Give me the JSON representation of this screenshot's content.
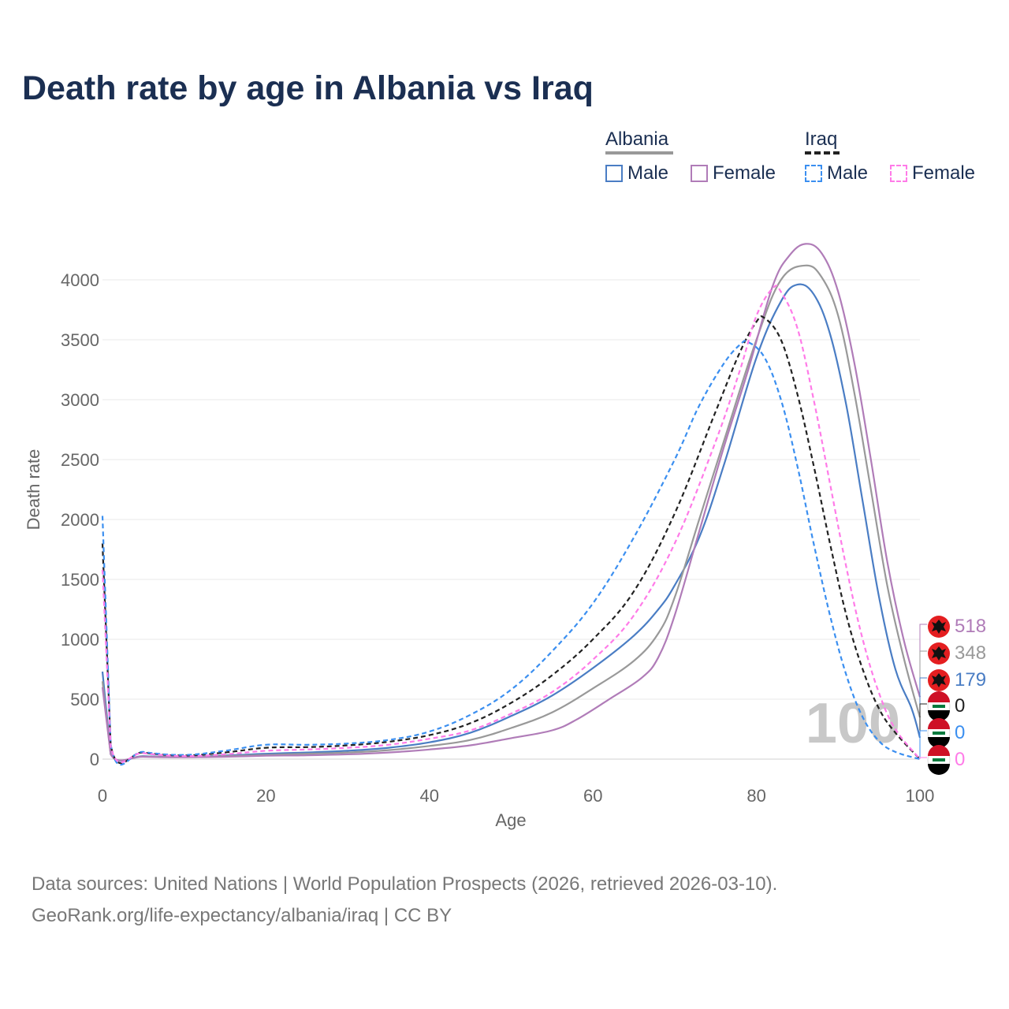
{
  "title": "Death rate by age in Albania vs Iraq",
  "legend": {
    "groups": [
      {
        "country": "Albania",
        "underline_color": "#999999",
        "underline_style": "solid",
        "items": [
          {
            "label": "Male",
            "color": "#4a7dc4",
            "style": "solid"
          },
          {
            "label": "Female",
            "color": "#b07cb8",
            "style": "solid"
          }
        ]
      },
      {
        "country": "Iraq",
        "underline_color": "#222222",
        "underline_style": "dashed",
        "items": [
          {
            "label": "Male",
            "color": "#3b8ff0",
            "style": "dashed"
          },
          {
            "label": "Female",
            "color": "#ff7be8",
            "style": "dashed"
          }
        ]
      }
    ]
  },
  "footer": {
    "line1": "Data sources: United Nations | World Population Prospects (2026, retrieved 2026-03-10).",
    "line2": "GeoRank.org/life-expectancy/albania/iraq | CC BY"
  },
  "chart_data": {
    "type": "line",
    "title": "Death rate by age in Albania vs Iraq",
    "xlabel": "Age",
    "ylabel": "Death rate",
    "xlim": [
      0,
      100
    ],
    "ylim": [
      0,
      4300
    ],
    "xticks": [
      0,
      20,
      40,
      60,
      80,
      100
    ],
    "yticks": [
      0,
      500,
      1000,
      1500,
      2000,
      2500,
      3000,
      3500,
      4000
    ],
    "current_age_label": "100",
    "series": [
      {
        "name": "Albania Male",
        "color": "#4a7dc4",
        "dash": false,
        "points": [
          [
            0,
            730
          ],
          [
            1,
            45
          ],
          [
            5,
            25
          ],
          [
            10,
            20
          ],
          [
            15,
            30
          ],
          [
            20,
            45
          ],
          [
            25,
            55
          ],
          [
            30,
            70
          ],
          [
            35,
            95
          ],
          [
            40,
            140
          ],
          [
            45,
            220
          ],
          [
            50,
            360
          ],
          [
            55,
            530
          ],
          [
            60,
            760
          ],
          [
            65,
            1030
          ],
          [
            68,
            1250
          ],
          [
            70,
            1450
          ],
          [
            73,
            1850
          ],
          [
            76,
            2450
          ],
          [
            80,
            3350
          ],
          [
            83,
            3820
          ],
          [
            85,
            3960
          ],
          [
            87,
            3880
          ],
          [
            89,
            3550
          ],
          [
            91,
            2950
          ],
          [
            93,
            2150
          ],
          [
            95,
            1350
          ],
          [
            97,
            750
          ],
          [
            99,
            420
          ],
          [
            100,
            179
          ]
        ]
      },
      {
        "name": "Albania (both sexes)",
        "color": "#999999",
        "dash": false,
        "points": [
          [
            0,
            650
          ],
          [
            1,
            42
          ],
          [
            5,
            22
          ],
          [
            10,
            18
          ],
          [
            15,
            25
          ],
          [
            20,
            35
          ],
          [
            25,
            45
          ],
          [
            30,
            55
          ],
          [
            35,
            75
          ],
          [
            40,
            110
          ],
          [
            45,
            160
          ],
          [
            50,
            260
          ],
          [
            55,
            390
          ],
          [
            60,
            590
          ],
          [
            65,
            820
          ],
          [
            68,
            1050
          ],
          [
            70,
            1350
          ],
          [
            73,
            2000
          ],
          [
            76,
            2650
          ],
          [
            80,
            3500
          ],
          [
            83,
            4000
          ],
          [
            86,
            4120
          ],
          [
            88,
            4020
          ],
          [
            90,
            3700
          ],
          [
            92,
            3050
          ],
          [
            94,
            2250
          ],
          [
            96,
            1450
          ],
          [
            98,
            850
          ],
          [
            100,
            348
          ]
        ]
      },
      {
        "name": "Albania Female",
        "color": "#b07cb8",
        "dash": false,
        "points": [
          [
            0,
            600
          ],
          [
            1,
            40
          ],
          [
            5,
            20
          ],
          [
            10,
            16
          ],
          [
            15,
            20
          ],
          [
            20,
            28
          ],
          [
            25,
            32
          ],
          [
            30,
            40
          ],
          [
            35,
            55
          ],
          [
            40,
            80
          ],
          [
            45,
            115
          ],
          [
            50,
            175
          ],
          [
            55,
            240
          ],
          [
            58,
            330
          ],
          [
            62,
            500
          ],
          [
            66,
            680
          ],
          [
            68,
            850
          ],
          [
            70,
            1200
          ],
          [
            73,
            1900
          ],
          [
            76,
            2600
          ],
          [
            79,
            3250
          ],
          [
            82,
            3950
          ],
          [
            84,
            4200
          ],
          [
            86,
            4300
          ],
          [
            88,
            4220
          ],
          [
            90,
            3900
          ],
          [
            92,
            3300
          ],
          [
            94,
            2500
          ],
          [
            96,
            1650
          ],
          [
            98,
            1000
          ],
          [
            100,
            518
          ]
        ]
      },
      {
        "name": "Iraq (both sexes)",
        "color": "#222222",
        "dash": true,
        "points": [
          [
            0,
            1800
          ],
          [
            1,
            120
          ],
          [
            5,
            55
          ],
          [
            10,
            30
          ],
          [
            15,
            55
          ],
          [
            20,
            95
          ],
          [
            25,
            100
          ],
          [
            30,
            115
          ],
          [
            35,
            145
          ],
          [
            40,
            200
          ],
          [
            45,
            300
          ],
          [
            50,
            470
          ],
          [
            55,
            700
          ],
          [
            60,
            1000
          ],
          [
            65,
            1400
          ],
          [
            70,
            2050
          ],
          [
            75,
            2900
          ],
          [
            78,
            3400
          ],
          [
            80,
            3650
          ],
          [
            81,
            3680
          ],
          [
            83,
            3500
          ],
          [
            85,
            3050
          ],
          [
            87,
            2450
          ],
          [
            89,
            1800
          ],
          [
            91,
            1200
          ],
          [
            93,
            750
          ],
          [
            95,
            420
          ],
          [
            97,
            220
          ],
          [
            100,
            0
          ]
        ]
      },
      {
        "name": "Iraq Male",
        "color": "#3b8ff0",
        "dash": true,
        "points": [
          [
            0,
            2030
          ],
          [
            1,
            125
          ],
          [
            5,
            60
          ],
          [
            10,
            35
          ],
          [
            15,
            70
          ],
          [
            20,
            120
          ],
          [
            25,
            120
          ],
          [
            30,
            130
          ],
          [
            35,
            160
          ],
          [
            40,
            230
          ],
          [
            45,
            370
          ],
          [
            50,
            580
          ],
          [
            55,
            900
          ],
          [
            60,
            1300
          ],
          [
            65,
            1850
          ],
          [
            70,
            2500
          ],
          [
            73,
            2950
          ],
          [
            76,
            3300
          ],
          [
            78,
            3460
          ],
          [
            79,
            3480
          ],
          [
            81,
            3350
          ],
          [
            83,
            3000
          ],
          [
            85,
            2450
          ],
          [
            87,
            1800
          ],
          [
            89,
            1200
          ],
          [
            91,
            700
          ],
          [
            93,
            350
          ],
          [
            95,
            150
          ],
          [
            97,
            60
          ],
          [
            100,
            0
          ]
        ]
      },
      {
        "name": "Iraq Female",
        "color": "#ff7be8",
        "dash": true,
        "points": [
          [
            0,
            1580
          ],
          [
            1,
            110
          ],
          [
            5,
            50
          ],
          [
            10,
            25
          ],
          [
            15,
            40
          ],
          [
            20,
            70
          ],
          [
            25,
            80
          ],
          [
            30,
            95
          ],
          [
            35,
            120
          ],
          [
            40,
            170
          ],
          [
            45,
            240
          ],
          [
            50,
            380
          ],
          [
            55,
            560
          ],
          [
            60,
            830
          ],
          [
            65,
            1200
          ],
          [
            70,
            1800
          ],
          [
            75,
            2650
          ],
          [
            78,
            3250
          ],
          [
            80,
            3700
          ],
          [
            82,
            3930
          ],
          [
            83,
            3900
          ],
          [
            85,
            3600
          ],
          [
            87,
            3000
          ],
          [
            89,
            2300
          ],
          [
            91,
            1600
          ],
          [
            93,
            1000
          ],
          [
            95,
            550
          ],
          [
            97,
            250
          ],
          [
            100,
            0
          ]
        ]
      }
    ],
    "end_labels": [
      {
        "value": "518",
        "color": "#b07cb8",
        "flag": "albania"
      },
      {
        "value": "348",
        "color": "#999999",
        "flag": "albania"
      },
      {
        "value": "179",
        "color": "#4a7dc4",
        "flag": "albania"
      },
      {
        "value": "0",
        "color": "#222222",
        "flag": "iraq"
      },
      {
        "value": "0",
        "color": "#3b8ff0",
        "flag": "iraq"
      },
      {
        "value": "0",
        "color": "#ff7be8",
        "flag": "iraq"
      }
    ]
  }
}
